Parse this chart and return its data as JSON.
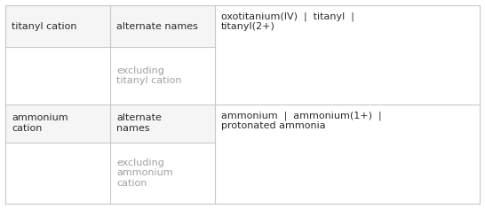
{
  "rows": [
    {
      "col1": "titanyl cation",
      "col2_top": "alternate names",
      "col2_bottom": "excluding\ntitanyl cation",
      "col3": "oxotitanium(IV)  |  titanyl  |\ntitanyl(2+)"
    },
    {
      "col1": "ammonium\ncation",
      "col2_top": "alternate\nnames",
      "col2_bottom": "excluding\nammonium\ncation",
      "col3": "ammonium  |  ammonium(1+)  |\nprotonated ammonia"
    }
  ],
  "bg_color": "#ffffff",
  "cell_bg": "#f5f5f5",
  "border_color": "#c8c8c8",
  "text_color_dark": "#2b2b2b",
  "text_color_light": "#a0a0a0",
  "font_size": 8.0,
  "fig_width": 5.46,
  "fig_height": 2.36,
  "dpi": 100
}
